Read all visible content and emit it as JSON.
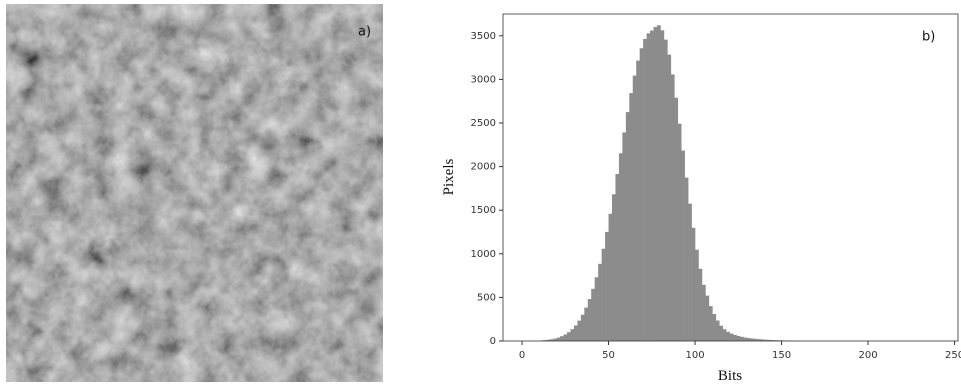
{
  "image_label": "a)",
  "chart_data": {
    "type": "histogram",
    "annotation": "b)",
    "xlabel": "Bits",
    "ylabel": "Pixels",
    "color": "#8c8c8c",
    "bins": [
      10,
      12,
      14,
      16,
      18,
      20,
      22,
      24,
      26,
      28,
      30,
      32,
      34,
      36,
      38,
      40,
      42,
      44,
      46,
      48,
      50,
      52,
      54,
      56,
      58,
      60,
      62,
      64,
      66,
      68,
      70,
      72,
      74,
      76,
      78,
      80,
      82,
      84,
      86,
      88,
      90,
      92,
      94,
      96,
      98,
      100,
      102,
      104,
      106,
      108,
      110,
      112,
      114,
      116,
      118,
      120,
      122,
      124,
      126,
      128,
      130,
      132,
      134,
      136,
      138,
      140,
      142,
      144,
      146,
      148,
      150,
      152,
      154,
      156,
      158,
      160
    ],
    "values": [
      6,
      10,
      14,
      20,
      28,
      39,
      55,
      75,
      101,
      135,
      178,
      234,
      301,
      383,
      481,
      598,
      731,
      885,
      1058,
      1251,
      1459,
      1682,
      1915,
      2153,
      2392,
      2625,
      2843,
      3043,
      3216,
      3357,
      3464,
      3528,
      3560,
      3600,
      3620,
      3563,
      3456,
      3284,
      3057,
      2790,
      2492,
      2184,
      1874,
      1575,
      1298,
      1047,
      828,
      644,
      520,
      400,
      310,
      235,
      175,
      135,
      105,
      85,
      70,
      58,
      48,
      40,
      34,
      29,
      25,
      21,
      18,
      15,
      13,
      11,
      9,
      8,
      7,
      6,
      5,
      4,
      3
    ],
    "xlim": [
      -11,
      252
    ],
    "ylim": [
      0,
      3750
    ],
    "xticks": [
      0,
      50,
      100,
      150,
      200,
      250
    ],
    "yticks": [
      0,
      500,
      1000,
      1500,
      2000,
      2500,
      3000,
      3500
    ]
  }
}
